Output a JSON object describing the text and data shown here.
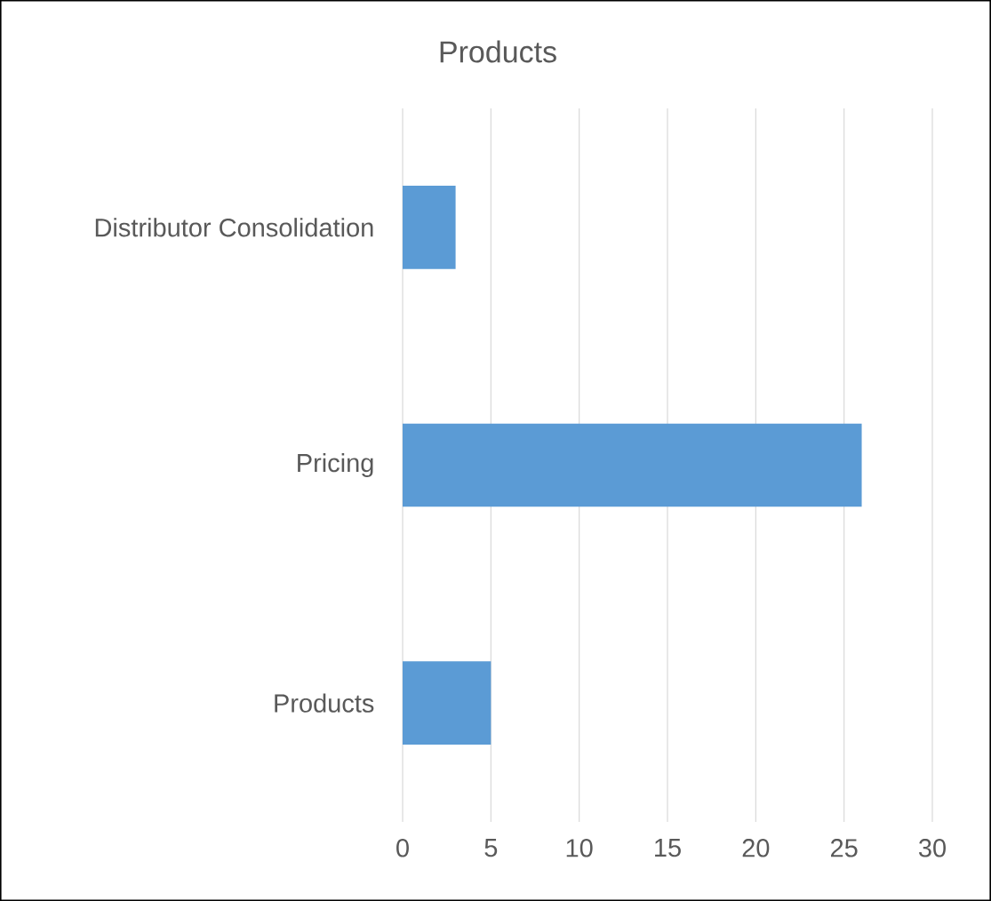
{
  "chart_data": {
    "type": "bar",
    "orientation": "horizontal",
    "title": "Products",
    "categories": [
      "Distributor Consolidation",
      "Pricing",
      "Products"
    ],
    "values": [
      3,
      26,
      5
    ],
    "color": "#5b9bd5",
    "xlim": [
      0,
      30
    ],
    "xticks": [
      0,
      5,
      10,
      15,
      20,
      25,
      30
    ],
    "grid": "x"
  }
}
